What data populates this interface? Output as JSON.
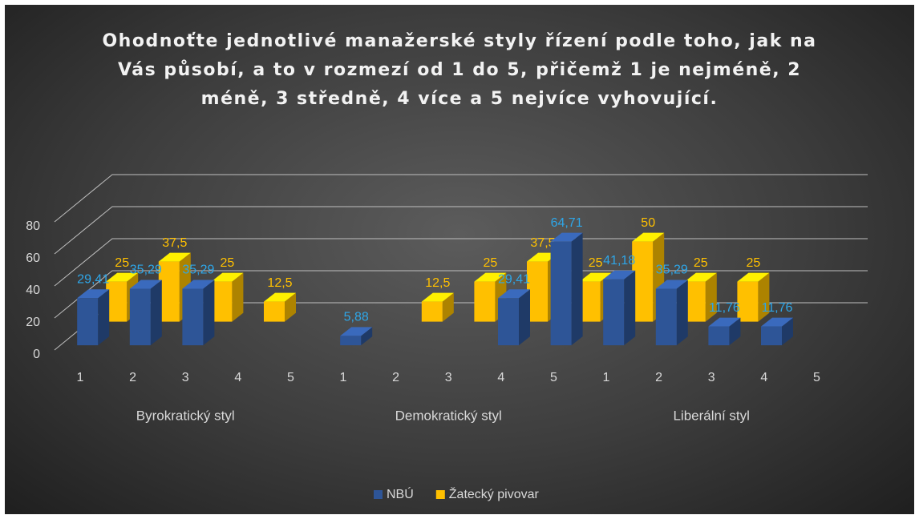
{
  "chart_data": {
    "type": "bar3d",
    "title": "Ohodnoťte jednotlivé manažerské styly řízení podle toho, jak na Vás působí, a to v rozmezí od 1 do 5, přičemž 1 je nejméně, 2 méně, 3 středně, 4 více a 5 nejvíce vyhovující.",
    "categories": [
      "1",
      "2",
      "3",
      "4",
      "5",
      "1",
      "2",
      "3",
      "4",
      "5",
      "1",
      "2",
      "3",
      "4",
      "5"
    ],
    "groups": [
      "Byrokratický styl",
      "Demokratický styl",
      "Liberální styl"
    ],
    "series": [
      {
        "name": "NBÚ",
        "color": "#2e5597",
        "label_color": "#2ea6e8",
        "values": [
          29.41,
          35.29,
          35.29,
          null,
          null,
          5.88,
          null,
          null,
          29.41,
          64.71,
          41.18,
          35.29,
          11.76,
          11.76,
          null
        ],
        "value_labels": [
          "29,41",
          "35,29",
          "35,29",
          null,
          null,
          "5,88",
          null,
          null,
          "29,41",
          "64,71",
          "41,18",
          "35,29",
          "11,76",
          "11,76",
          null
        ]
      },
      {
        "name": "Žatecký pivovar",
        "color": "#ffc000",
        "label_color": "#ffc000",
        "values": [
          25,
          37.5,
          25,
          12.5,
          null,
          null,
          12.5,
          25,
          37.5,
          25,
          50,
          25,
          25,
          null,
          null
        ],
        "value_labels": [
          "25",
          "37,5",
          "25",
          "12,5",
          null,
          null,
          "12,5",
          "25",
          "37,5",
          "25",
          "50",
          "25",
          "25",
          null,
          null
        ]
      }
    ],
    "ylim": [
      0,
      80
    ],
    "yticks": [
      0,
      20,
      40,
      60,
      80
    ],
    "grid": true,
    "legend": "bottom"
  }
}
